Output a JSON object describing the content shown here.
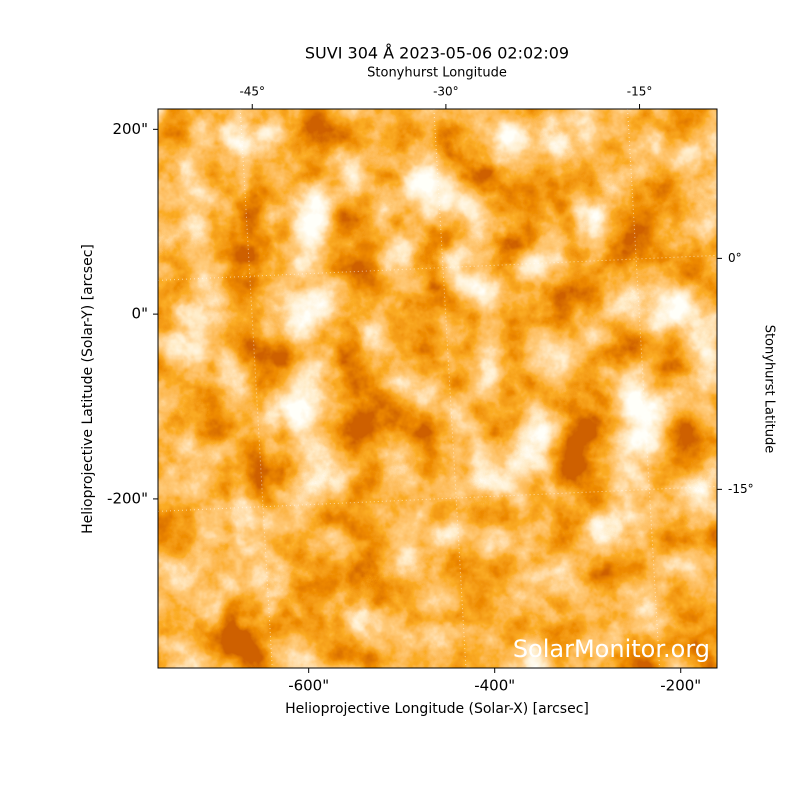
{
  "chart_data": {
    "type": "image",
    "title": "SUVI 304 Å 2023-05-06 02:02:09",
    "xlabel": "Helioprojective Longitude (Solar-X) [arcsec]",
    "ylabel": "Helioprojective Latitude (Solar-Y) [arcsec]",
    "x2label": "Stonyhurst Longitude",
    "y2label": "Stonyhurst Latitude",
    "watermark": "SolarMonitor.org",
    "xlim": [
      -762,
      -161
    ],
    "ylim": [
      -383,
      222
    ],
    "xticks": [
      {
        "value": -600,
        "label": "-600\""
      },
      {
        "value": -400,
        "label": "-400\""
      },
      {
        "value": -200,
        "label": "-200\""
      }
    ],
    "yticks": [
      {
        "value": 200,
        "label": "200\""
      },
      {
        "value": 0,
        "label": "0\""
      },
      {
        "value": -200,
        "label": "-200\""
      }
    ],
    "x2lim": [
      -52.3,
      -9.0
    ],
    "x2ticks": [
      {
        "value": -45,
        "label": "-45°"
      },
      {
        "value": -30,
        "label": "-30°"
      },
      {
        "value": -15,
        "label": "-15°"
      }
    ],
    "y2lim": [
      -26.6,
      9.7
    ],
    "y2ticks": [
      {
        "value": 0,
        "label": "0°"
      },
      {
        "value": -15,
        "label": "-15°"
      }
    ],
    "grid": true
  }
}
